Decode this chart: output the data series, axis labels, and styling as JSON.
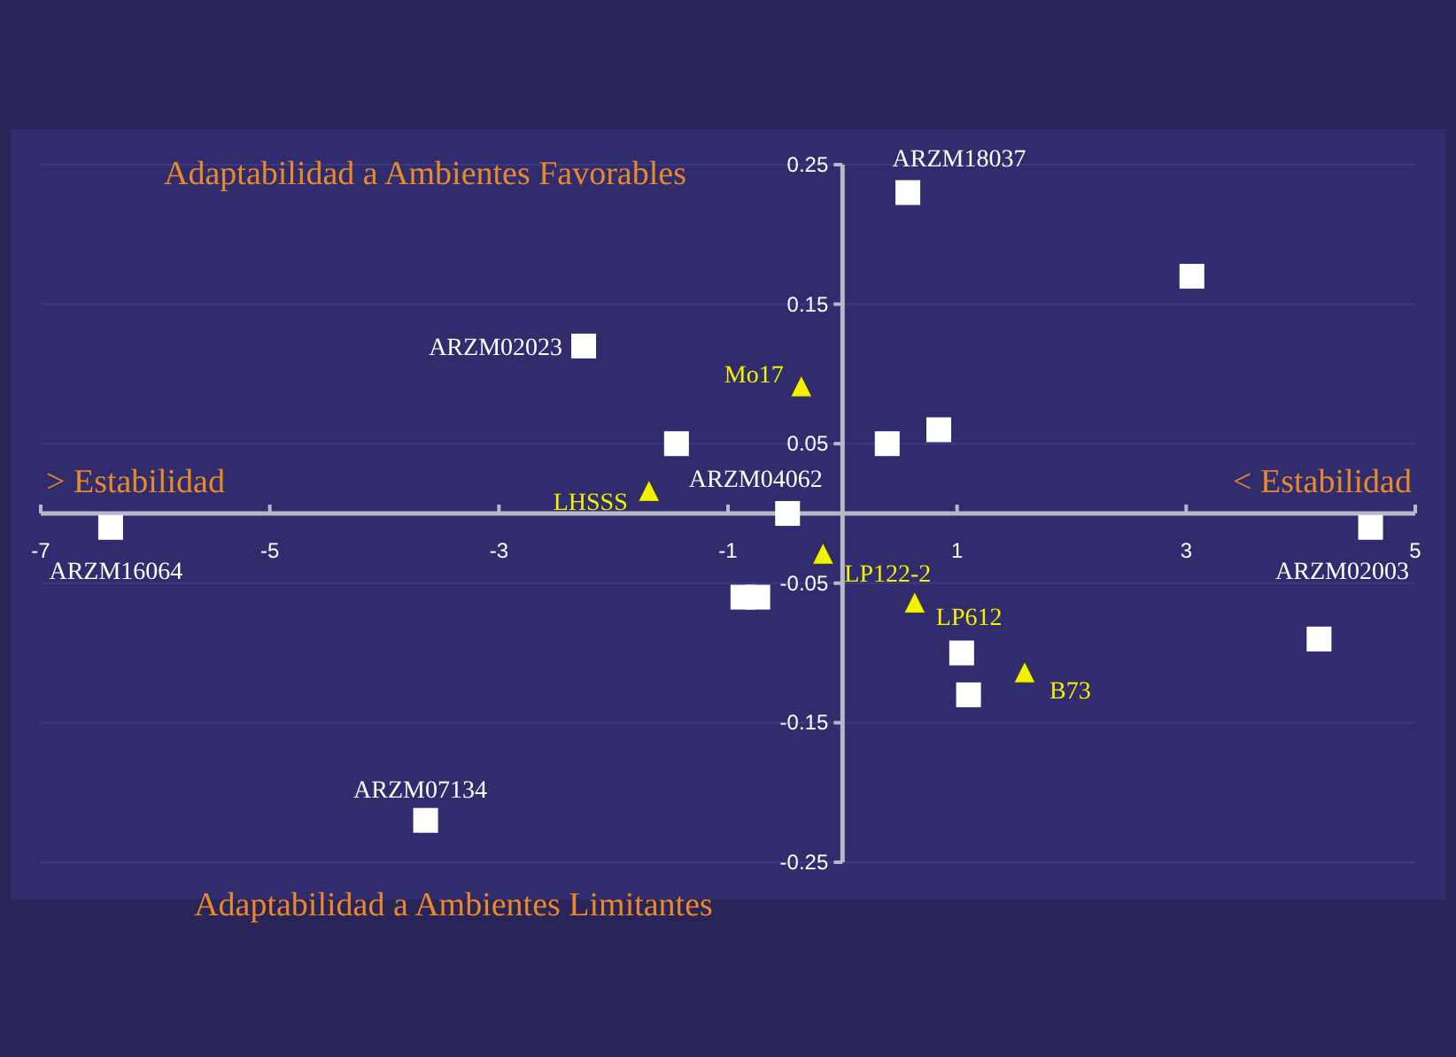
{
  "chart_data": {
    "type": "scatter",
    "xlim": [
      -7,
      5
    ],
    "xticks": [
      -7,
      -5,
      -3,
      -1,
      1,
      3,
      5
    ],
    "ylim": [
      -0.25,
      0.25
    ],
    "yticks": [
      -0.25,
      -0.15,
      -0.05,
      0.05,
      0.15,
      0.25
    ],
    "grid": "y",
    "series": [
      {
        "color": "#ffffff",
        "marker": "square",
        "x": [
          0.57,
          3.05,
          -2.26,
          -1.45,
          0.39,
          0.84,
          -0.48,
          -6.39,
          4.61,
          -0.87,
          -0.74,
          1.04,
          1.1,
          4.16,
          -3.64
        ],
        "values": [
          0.23,
          0.17,
          0.12,
          0.05,
          0.05,
          0.06,
          0,
          -0.01,
          -0.01,
          -0.06,
          -0.06,
          -0.1,
          -0.13,
          -0.09,
          -0.22
        ]
      },
      {
        "color": "#f2f200",
        "marker": "triangle",
        "x": [
          -0.36,
          -1.69,
          -0.17,
          0.63,
          1.59
        ],
        "values": [
          0.09,
          0.015,
          -0.03,
          -0.065,
          -0.115
        ]
      }
    ],
    "annotations": [
      "Adaptabilidad a Ambientes Favorables",
      "> Estabilidad",
      "< Estabilidad",
      "Adaptabilidad a Ambientes Limitantes",
      {
        "text": "ARZM18037",
        "x": 0.57,
        "y": 0.23
      },
      {
        "text": "ARZM02023",
        "x": -2.26,
        "y": 0.12
      },
      {
        "text": "ARZM04062",
        "x": -0.48,
        "y": 0
      },
      {
        "text": "ARZM16064",
        "x": -6.39,
        "y": -0.01
      },
      {
        "text": "ARZM02003",
        "x": 4.61,
        "y": -0.01
      },
      {
        "text": "ARZM07134",
        "x": -3.64,
        "y": -0.22
      },
      {
        "text": "Mo17",
        "x": -0.36,
        "y": 0.09
      },
      {
        "text": "LHSSS",
        "x": -1.69,
        "y": 0.015
      },
      {
        "text": "LP122-2",
        "x": -0.17,
        "y": -0.03
      },
      {
        "text": "LP612",
        "x": 0.63,
        "y": -0.065
      },
      {
        "text": "B73",
        "x": 1.59,
        "y": -0.115
      }
    ]
  }
}
